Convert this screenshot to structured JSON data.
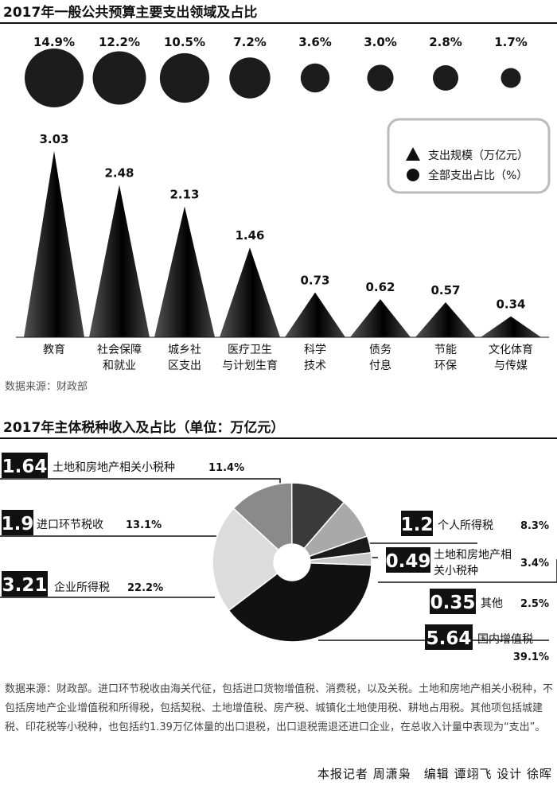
{
  "chart_data": [
    {
      "type": "bar",
      "title": "2017年一般公共预算主要支出领域及占比",
      "categories": [
        [
          "教育"
        ],
        [
          "社会保障",
          "和就业"
        ],
        [
          "城乡社",
          "区支出"
        ],
        [
          "医疗卫生",
          "与计划生育"
        ],
        [
          "科学",
          "技术"
        ],
        [
          "债务",
          "付息"
        ],
        [
          "节能",
          "环保"
        ],
        [
          "文化体育",
          "与传媒"
        ]
      ],
      "series": [
        {
          "name": "支出规模（万亿元）",
          "marker": "triangle",
          "values": [
            3.03,
            2.48,
            2.13,
            1.46,
            0.73,
            0.62,
            0.57,
            0.34
          ]
        },
        {
          "name": "全部支出占比（%）",
          "marker": "circle",
          "values": [
            14.9,
            12.2,
            10.5,
            7.2,
            3.6,
            3.0,
            2.8,
            1.7
          ],
          "labels": [
            "14.9%",
            "12.2%",
            "10.5%",
            "7.2%",
            "3.6%",
            "3.0%",
            "2.8%",
            "1.7%"
          ]
        }
      ],
      "value_labels": [
        "3.03",
        "2.48",
        "2.13",
        "1.46",
        "0.73",
        "0.62",
        "0.57",
        "0.34"
      ],
      "legend_position": "top-right",
      "source": "数据来源：财政部"
    },
    {
      "type": "pie",
      "title": "2017年主体税种收入及占比（单位：万亿元）",
      "slices": [
        {
          "label": "国内增值税",
          "value": 5.64,
          "value_text": "5.64",
          "percent": 39.1,
          "percent_text": "39.1%",
          "color": "#111111"
        },
        {
          "label": "企业所得税",
          "value": 3.21,
          "value_text": "3.21",
          "percent": 22.2,
          "percent_text": "22.2%",
          "color": "#dcdcdc"
        },
        {
          "label": "进口环节税收",
          "value": 1.9,
          "value_text": "1.9",
          "percent": 13.1,
          "percent_text": "13.1%",
          "color": "#8a8a8a"
        },
        {
          "label": "土地和房地产相关小税种",
          "value": 1.64,
          "value_text": "1.64",
          "percent": 11.4,
          "percent_text": "11.4%",
          "color": "#3a3a3a"
        },
        {
          "label": "个人所得税",
          "value": 1.2,
          "value_text": "1.2",
          "percent": 8.3,
          "percent_text": "8.3%",
          "color": "#a9a9a9"
        },
        {
          "label": "土地和房地产相关小税种",
          "value": 0.49,
          "value_text": "0.49",
          "percent": 3.4,
          "percent_text": "3.4%",
          "color": "#1a1a1a"
        },
        {
          "label": "其他",
          "value": 0.35,
          "value_text": "0.35",
          "percent": 2.5,
          "percent_text": "2.5%",
          "color": "#c8c8c8"
        }
      ]
    }
  ],
  "footnote": "数据来源：财政部。进口环节税收由海关代征，包括进口货物增值税、消费税，以及关税。土地和房地产相关小税种，不包括房地产企业增值税和所得税，包括契税、土地增值税、房产税、城镇化土地使用税、耕地占用税。其他项包括城建税、印花税等小税种，也包括约1.39万亿体量的出口退税，出口退税需退还进口企业，在总收入计量中表现为“支出”。",
  "credits": "本报记者 周潇枭　编辑 谭翊飞 设计 徐晖",
  "colors": {
    "ink": "#111111",
    "legend_border": "#bbbbbb"
  }
}
